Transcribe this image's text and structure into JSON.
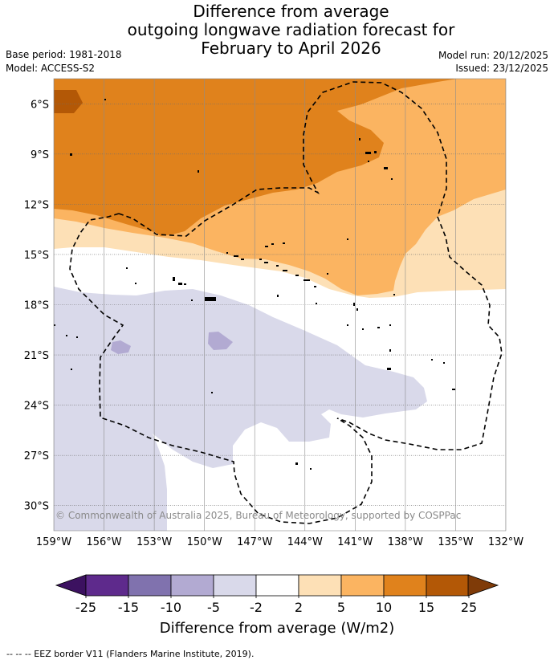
{
  "title": {
    "line1": "Difference from average",
    "line2": "outgoing longwave radiation forecast for",
    "line3": "February to April 2026"
  },
  "meta": {
    "base_period": "Base period: 1981-2018",
    "model": "Model: ACCESS-S2",
    "model_run": "Model run: 20/12/2025",
    "issued": "Issued: 23/12/2025"
  },
  "map": {
    "lat_labels": [
      "6°S",
      "9°S",
      "12°S",
      "15°S",
      "18°S",
      "21°S",
      "24°S",
      "27°S",
      "30°S"
    ],
    "lon_labels": [
      "159°W",
      "156°W",
      "153°W",
      "150°W",
      "147°W",
      "144°W",
      "141°W",
      "138°W",
      "135°W",
      "132°W"
    ],
    "lat_values": [
      -6,
      -9,
      -12,
      -15,
      -18,
      -21,
      -24,
      -27,
      -30
    ],
    "lon_values": [
      -159,
      -156,
      -153,
      -150,
      -147,
      -144,
      -141,
      -138,
      -135,
      -132
    ],
    "lat_range": [
      -31.5,
      -4.5
    ],
    "lon_range": [
      -159,
      -132
    ],
    "copyright": "© Commonwealth of Australia 2025, Bureau of Meteorology, supported by COSPPac"
  },
  "colorbar": {
    "title": "Difference from average (W/m2)",
    "ticks": [
      "-25",
      "-15",
      "-10",
      "-5",
      "-2",
      "2",
      "5",
      "10",
      "15",
      "25"
    ],
    "bins": [
      {
        "range": "< -25",
        "color": "#3c1160"
      },
      {
        "range": "-25 to -15",
        "color": "#5e2a8c"
      },
      {
        "range": "-15 to -10",
        "color": "#8072ae"
      },
      {
        "range": "-10 to -5",
        "color": "#b2aad2"
      },
      {
        "range": "-5 to -2",
        "color": "#d9d9ea"
      },
      {
        "range": "-2 to 2",
        "color": "#ffffff"
      },
      {
        "range": "2 to 5",
        "color": "#fde0b6"
      },
      {
        "range": "5 to 10",
        "color": "#fbb461"
      },
      {
        "range": "10 to 15",
        "color": "#e0821c"
      },
      {
        "range": "15 to 25",
        "color": "#b35806"
      },
      {
        "range": "> 25",
        "color": "#7f3b08"
      }
    ]
  },
  "legend_note": "--  --  -- EEZ border V11 (Flanders Marine Institute, 2019)."
}
